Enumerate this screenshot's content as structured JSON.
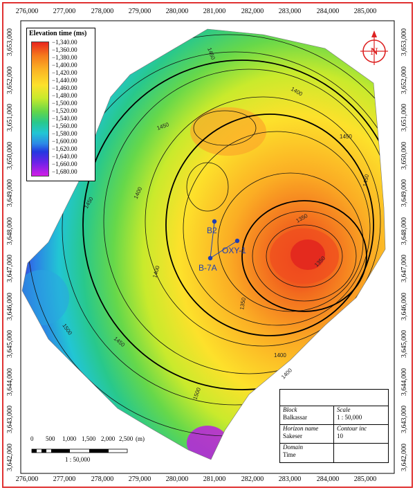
{
  "map": {
    "x_ticks": [
      "276,000",
      "277,000",
      "278,000",
      "279,000",
      "280,000",
      "281,000",
      "282,000",
      "283,000",
      "284,000",
      "285,000"
    ],
    "y_ticks": [
      "3,653,000",
      "3,652,000",
      "3,651,000",
      "3,650,000",
      "3,649,000",
      "3,648,000",
      "3,647,000",
      "3,646,000",
      "3,645,000",
      "3,644,000",
      "3,643,000",
      "3,642,000"
    ],
    "frame_color": "#e03030",
    "colors": {
      "high": "#e8251e",
      "mid": "#fde12b",
      "low": "#d21ee6"
    }
  },
  "legend": {
    "title": "Elevation time (ms)",
    "labels": [
      "−1,340.00",
      "−1,360.00",
      "−1,380.00",
      "−1,400.00",
      "−1,420.00",
      "−1,440.00",
      "−1,460.00",
      "−1,480.00",
      "−1,500.00",
      "−1,520.00",
      "−1,540.00",
      "−1,560.00",
      "−1,580.00",
      "−1,600.00",
      "−1,620.00",
      "−1,640.00",
      "−1,660.00",
      "−1,680.00"
    ]
  },
  "contour_labels": [
    "1450",
    "1450",
    "1450",
    "1400",
    "1400",
    "1400",
    "1350",
    "1350",
    "1350",
    "1400",
    "1450",
    "1500",
    "1450",
    "1400",
    "1500",
    "1450"
  ],
  "north_arrow": {
    "letter": "N",
    "icon": "north-arrow-icon"
  },
  "wells": [
    {
      "name": "B2"
    },
    {
      "name": "OXY-1"
    },
    {
      "name": "B-7A"
    }
  ],
  "scale_bar": {
    "ticks": [
      "0",
      "500",
      "1,000",
      "1,500",
      "2,000",
      "2,500"
    ],
    "unit": "(m)",
    "ratio": "1 : 50,000"
  },
  "title_block": {
    "block_key": "Block",
    "block_value": "Balkassar",
    "scale_key": "Scale",
    "scale_value": "1 : 50,000",
    "horizon_key": "Horizon name",
    "horizon_value": "Sakeser",
    "contour_key": "Contour inc",
    "contour_value": "10",
    "domain_key": "Domain",
    "domain_value": "Time"
  }
}
